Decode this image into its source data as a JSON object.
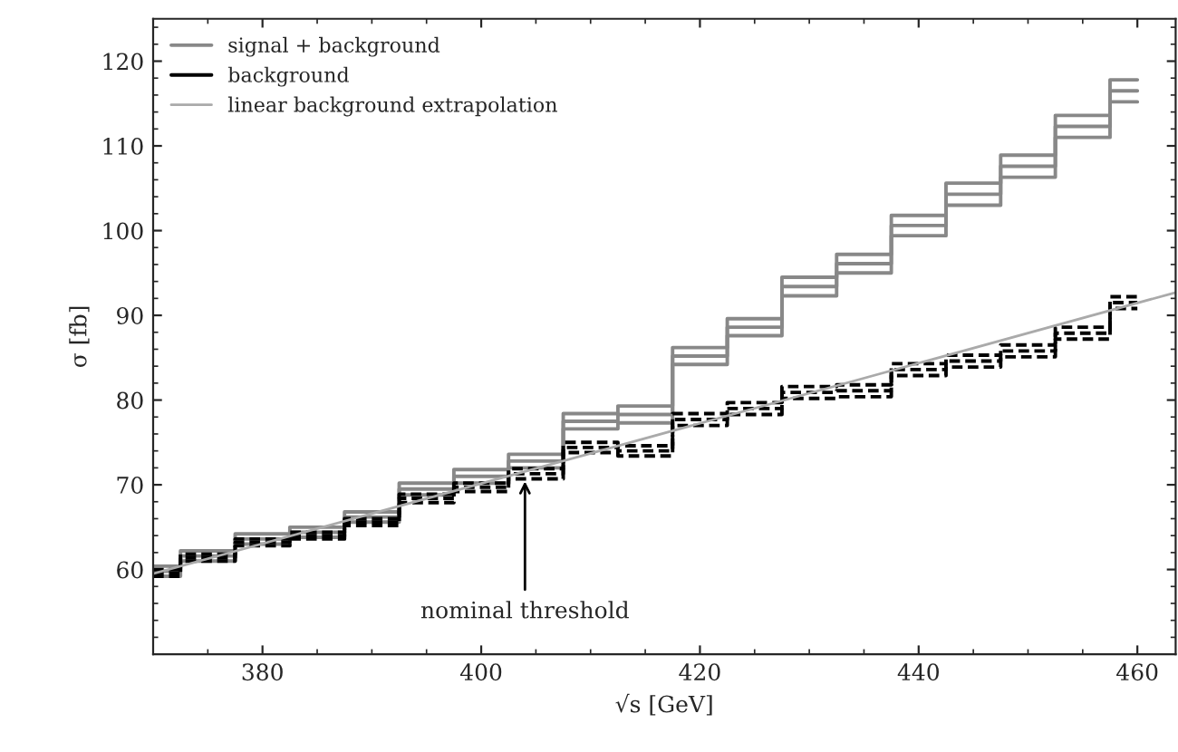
{
  "chart_data": {
    "type": "step",
    "xlabel": "√s [GeV]",
    "ylabel": "σ [fb]",
    "x": [
      370,
      375,
      380,
      385,
      390,
      395,
      400,
      405,
      410,
      415,
      420,
      425,
      430,
      435,
      440,
      445,
      450,
      455,
      460
    ],
    "series": [
      {
        "name": "signal + background",
        "color": "#888888",
        "line_style": "solid",
        "values": [
          59.8,
          61.6,
          63.6,
          64.4,
          66.2,
          69.5,
          71.0,
          72.8,
          77.5,
          78.3,
          85.2,
          88.6,
          93.4,
          96.1,
          100.6,
          104.3,
          107.6,
          112.3,
          116.5
        ]
      },
      {
        "color": "#888888",
        "line_style": "solid",
        "values": [
          59.2,
          61.0,
          63.0,
          63.8,
          65.6,
          68.8,
          70.2,
          72.0,
          76.6,
          77.3,
          84.2,
          87.6,
          92.3,
          95.0,
          99.4,
          103.0,
          106.3,
          111.0,
          115.2
        ]
      },
      {
        "color": "#888888",
        "line_style": "solid",
        "values": [
          60.4,
          62.2,
          64.2,
          65.0,
          66.8,
          70.2,
          71.8,
          73.6,
          78.4,
          79.3,
          86.2,
          89.6,
          94.5,
          97.2,
          101.8,
          105.6,
          108.9,
          113.6,
          117.8
        ]
      },
      {
        "name": "background",
        "color": "#000000",
        "line_style": "dashed",
        "values": [
          59.6,
          61.4,
          63.2,
          64.0,
          65.6,
          68.4,
          69.7,
          71.3,
          74.4,
          74.0,
          77.7,
          79.0,
          80.9,
          81.1,
          83.6,
          84.6,
          85.8,
          87.9,
          91.5
        ]
      },
      {
        "color": "#000000",
        "line_style": "dashed",
        "values": [
          59.2,
          61.0,
          62.8,
          63.6,
          65.2,
          67.9,
          69.2,
          70.7,
          73.8,
          73.4,
          77.0,
          78.3,
          80.2,
          80.4,
          82.9,
          83.9,
          85.1,
          87.2,
          90.8
        ]
      },
      {
        "color": "#000000",
        "line_style": "dashed",
        "values": [
          60.0,
          61.8,
          63.6,
          64.4,
          66.0,
          68.9,
          70.2,
          71.9,
          75.0,
          74.6,
          78.4,
          79.7,
          81.6,
          81.8,
          84.3,
          85.3,
          86.5,
          88.6,
          92.2
        ]
      },
      {
        "name": "linear background extrapolation",
        "type": "line",
        "color": "#aaaaaa",
        "line_style": "solid",
        "x": [
          370,
          463.5
        ],
        "values": [
          59.5,
          92.7
        ]
      }
    ],
    "xlim": [
      370,
      463.5
    ],
    "ylim": [
      50,
      125
    ],
    "xticks": [
      380,
      400,
      420,
      440,
      460
    ],
    "yticks": [
      60,
      70,
      80,
      90,
      100,
      110,
      120
    ],
    "grid": false,
    "legend": "top left",
    "annotations": [
      {
        "text": "nominal threshold",
        "x": 404,
        "y": 71.0
      }
    ]
  }
}
